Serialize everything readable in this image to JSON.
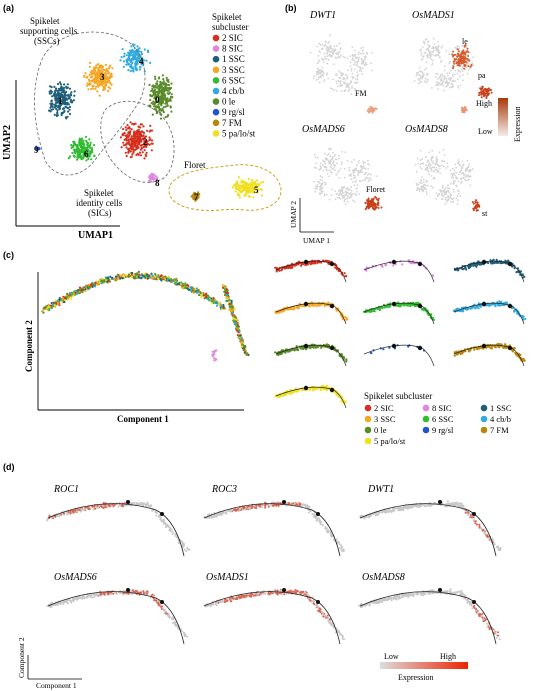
{
  "panels": {
    "a": {
      "label": "(a)",
      "title_ssc": [
        "Spikelet",
        "supporting cells",
        "(SSCs)"
      ],
      "title_sic": [
        "Spikelet",
        "identity cells",
        "(SICs)"
      ],
      "floret": "Floret",
      "xlabel": "UMAP1",
      "ylabel": "UMAP2",
      "legend_title": [
        "Spikelet",
        "subcluster"
      ],
      "cluster_numbers": [
        "3",
        "4",
        "1",
        "0",
        "2",
        "6",
        "9",
        "8",
        "7",
        "5"
      ]
    },
    "b": {
      "label": "(b)",
      "genes": [
        "DWT1",
        "OsMADS1",
        "OsMADS6",
        "OsMADS8"
      ],
      "annotations": [
        "FM",
        "le",
        "pa",
        "Floret",
        "st"
      ],
      "colorbar_high": "High",
      "colorbar_low": "Low",
      "colorbar_title": "Expression",
      "xlabel": "UMAP 1",
      "ylabel": "UMAP 2"
    },
    "c": {
      "label": "(c)",
      "xlabel": "Component 1",
      "ylabel": "Component 2",
      "legend_title": "Spikelet  subcluster"
    },
    "d": {
      "label": "(d)",
      "genes": [
        "ROC1",
        "ROC3",
        "DWT1",
        "OsMADS6",
        "OsMADS1",
        "OsMADS8"
      ],
      "xlabel": "Component 1",
      "ylabel": "Component 2",
      "colorbar_low": "Low",
      "colorbar_high": "High",
      "colorbar_title": "Expression"
    }
  },
  "subclusters": [
    {
      "label": "2 SIC",
      "color": "#d7301f"
    },
    {
      "label": "8 SIC",
      "color": "#dd88dd"
    },
    {
      "label": "1 SSC",
      "color": "#1f5f7a"
    },
    {
      "label": "3 SSC",
      "color": "#f5a623"
    },
    {
      "label": "6 SSC",
      "color": "#33bb33"
    },
    {
      "label": "4 cb/b",
      "color": "#33aadd"
    },
    {
      "label": "0 le",
      "color": "#5a8a2a"
    },
    {
      "label": "9 rg/sl",
      "color": "#2255cc"
    },
    {
      "label": "7 FM",
      "color": "#b8860b"
    },
    {
      "label": "5 pa/lo/st",
      "color": "#f0e020"
    }
  ],
  "legend_c_order": [
    "2 SIC",
    "8 SIC",
    "1 SSC",
    "3 SSC",
    "6 SSC",
    "4 cb/b",
    "0 le",
    "9 rg/sl",
    "7 FM",
    "5 pa/lo/st"
  ]
}
